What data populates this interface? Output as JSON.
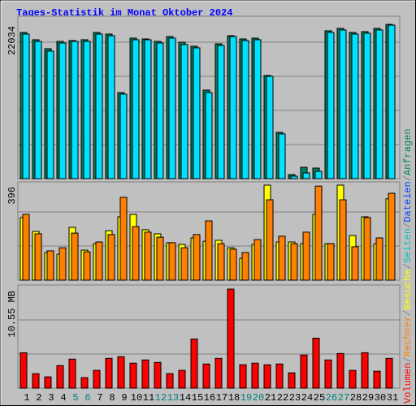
{
  "title": "Tages-Statistik im Monat Oktober 2024",
  "chart_data": [
    {
      "type": "bar",
      "ylim": [
        0,
        22034
      ],
      "yticks": [
        22034
      ],
      "series": [
        {
          "color": "#00805c",
          "values": [
            20880,
            19836,
            18560,
            19604,
            19720,
            19836,
            20880,
            20648,
            12296,
            20068,
            19952,
            19604,
            20300,
            19488,
            18908,
            12644,
            19256,
            20416,
            19952,
            20068,
            14732,
            6612,
            580,
            1624,
            1508,
            21112,
            21460,
            20880,
            20996,
            21460,
            22034
          ]
        },
        {
          "color": "#00e0ff",
          "values": [
            20648,
            19604,
            18212,
            19372,
            19604,
            19604,
            20648,
            20416,
            12064,
            19836,
            19836,
            19372,
            20068,
            19140,
            18676,
            12296,
            19024,
            20300,
            19720,
            19836,
            14616,
            6380,
            348,
            812,
            1044,
            20880,
            21228,
            20648,
            20764,
            21228,
            21918
          ]
        }
      ]
    },
    {
      "type": "bar",
      "ylim": [
        0,
        396
      ],
      "yticks": [
        396
      ],
      "series": [
        {
          "color": "#ffff00",
          "values": [
            261,
            203,
            115,
            108,
            220,
            125,
            152,
            206,
            264,
            274,
            210,
            193,
            156,
            149,
            176,
            162,
            166,
            135,
            91,
            149,
            396,
            159,
            159,
            152,
            274,
            152,
            396,
            186,
            264,
            152,
            339
          ]
        },
        {
          "color": "#ff8000",
          "values": [
            274,
            193,
            122,
            135,
            196,
            118,
            159,
            190,
            345,
            223,
            200,
            179,
            156,
            135,
            190,
            247,
            152,
            129,
            115,
            169,
            335,
            183,
            152,
            200,
            392,
            152,
            335,
            139,
            261,
            176,
            362
          ]
        }
      ]
    },
    {
      "type": "bar",
      "ylim": [
        0,
        10.55
      ],
      "yticks": [
        {
          "value": 10.55,
          "label": "10.55 MB"
        }
      ],
      "categories": [
        "1",
        "2",
        "3",
        "4",
        "5",
        "6",
        "7",
        "8",
        "9",
        "10",
        "11",
        "12",
        "13",
        "14",
        "15",
        "16",
        "17",
        "18",
        "19",
        "20",
        "21",
        "22",
        "23",
        "24",
        "25",
        "26",
        "27",
        "28",
        "29",
        "30",
        "31"
      ],
      "weekend_categories": [
        "5",
        "6",
        "12",
        "13",
        "19",
        "20",
        "26",
        "27"
      ],
      "series": [
        {
          "color": "#ff0000",
          "values": [
            3.77,
            1.54,
            1.2,
            2.4,
            3.09,
            1.12,
            1.89,
            3.17,
            3.35,
            2.66,
            3.0,
            2.74,
            1.54,
            1.89,
            5.23,
            2.57,
            3.17,
            10.55,
            2.49,
            2.66,
            2.49,
            2.57,
            1.63,
            3.52,
            5.32,
            3.0,
            3.69,
            1.89,
            3.77,
            1.8,
            3.17
          ]
        }
      ]
    }
  ],
  "legend": {
    "separator": "/",
    "entries": [
      {
        "text": "Volumen",
        "color": "#ff0000"
      },
      {
        "text": "Rechner",
        "color": "#ff8000"
      },
      {
        "text": "Besuche",
        "color": "#ffff00"
      },
      {
        "text": "Seiten",
        "color": "#00c0c0"
      },
      {
        "text": "Dateien",
        "color": "#0040ff"
      },
      {
        "text": "Anfragen",
        "color": "#00805c"
      }
    ]
  }
}
